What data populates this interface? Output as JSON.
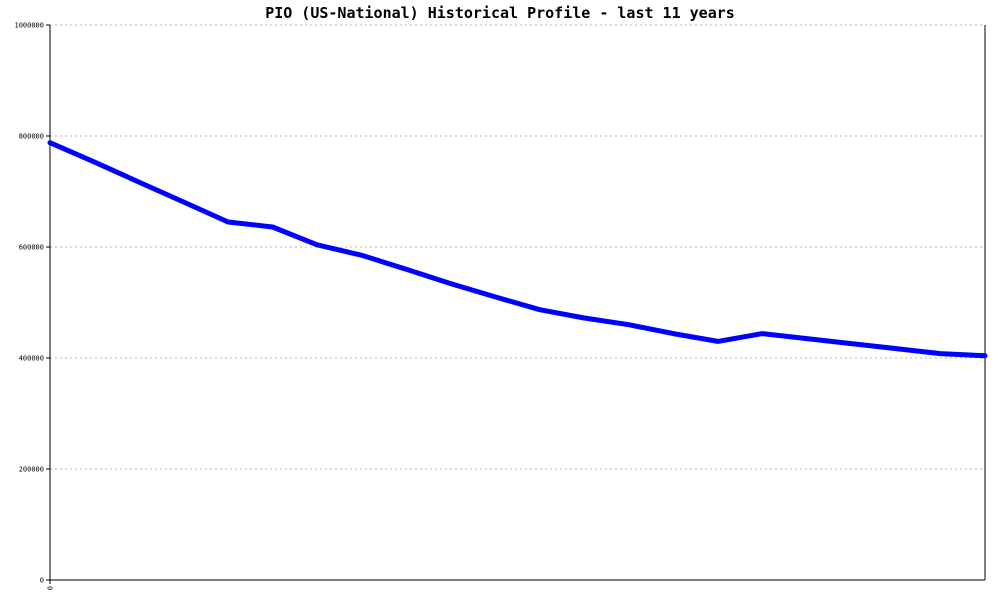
{
  "chart_data": {
    "type": "line",
    "title": "PIO (US-National) Historical Profile - last 11 years",
    "xlabel": "",
    "ylabel": "",
    "ylim": [
      0,
      1000000
    ],
    "y_ticks": [
      0,
      200000,
      400000,
      600000,
      800000,
      1000000
    ],
    "y_tick_labels": [
      "0",
      "200000",
      "400000",
      "600000",
      "800000",
      "1000000"
    ],
    "x_tick_labels": [
      "0"
    ],
    "xlim": [
      0,
      21
    ],
    "grid": true,
    "legend": "none",
    "series": [
      {
        "color": "#0000ff",
        "x": [
          0,
          1,
          2,
          3,
          4,
          5,
          6,
          7,
          8,
          9,
          10,
          11,
          12,
          13,
          14,
          15,
          16,
          17,
          18,
          19,
          20,
          21
        ],
        "values": [
          788000,
          753000,
          717000,
          681000,
          645000,
          636000,
          604000,
          585000,
          560000,
          534000,
          510000,
          487000,
          472000,
          460000,
          444000,
          430000,
          444000,
          435000,
          426000,
          417000,
          408000,
          404000
        ]
      }
    ]
  }
}
